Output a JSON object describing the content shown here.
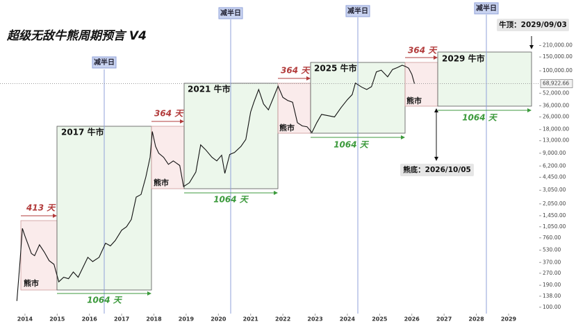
{
  "chart_data": {
    "type": "line",
    "title": "超级无敌牛熊周期预言 V4",
    "color": "#111111",
    "log_scale": true,
    "x": [
      2013.75,
      2013.85,
      2013.92,
      2014.0,
      2014.1,
      2014.2,
      2014.3,
      2014.45,
      2014.6,
      2014.75,
      2014.9,
      2015.05,
      2015.2,
      2015.35,
      2015.5,
      2015.65,
      2015.8,
      2015.95,
      2016.1,
      2016.3,
      2016.5,
      2016.65,
      2016.8,
      2017.0,
      2017.15,
      2017.3,
      2017.45,
      2017.6,
      2017.75,
      2017.88,
      2017.95,
      2018.05,
      2018.15,
      2018.3,
      2018.45,
      2018.6,
      2018.8,
      2018.92,
      2019.1,
      2019.3,
      2019.45,
      2019.6,
      2019.8,
      2019.95,
      2020.1,
      2020.2,
      2020.35,
      2020.5,
      2020.7,
      2020.85,
      2021.0,
      2021.1,
      2021.25,
      2021.4,
      2021.55,
      2021.7,
      2021.85,
      2022.0,
      2022.15,
      2022.3,
      2022.45,
      2022.6,
      2022.75,
      2022.9,
      2023.05,
      2023.2,
      2023.4,
      2023.6,
      2023.8,
      2024.0,
      2024.15,
      2024.25,
      2024.45,
      2024.6,
      2024.75,
      2024.9,
      2025.05,
      2025.25,
      2025.4,
      2025.55,
      2025.7,
      2025.8,
      2025.9,
      2026.0,
      2026.08
    ],
    "values": [
      120,
      400,
      1000,
      800,
      620,
      480,
      450,
      620,
      500,
      390,
      350,
      210,
      240,
      230,
      280,
      240,
      320,
      430,
      380,
      430,
      650,
      600,
      700,
      950,
      1050,
      1300,
      2500,
      2700,
      4500,
      8000,
      17000,
      11000,
      9000,
      8000,
      6500,
      7200,
      6300,
      3400,
      3800,
      5200,
      11500,
      10000,
      8000,
      7200,
      8500,
      5000,
      8700,
      9200,
      11000,
      13500,
      30000,
      40000,
      58000,
      38000,
      32000,
      45000,
      64000,
      46000,
      42000,
      40000,
      22000,
      20000,
      19500,
      16500,
      22000,
      28000,
      27000,
      26000,
      34000,
      43000,
      50000,
      70000,
      62000,
      58000,
      63000,
      97000,
      102000,
      84000,
      104000,
      110000,
      118000,
      114000,
      108000,
      90000,
      68922.66
    ],
    "xlim": [
      2013.7,
      2030.1
    ],
    "xticks": [
      2014,
      2015,
      2016,
      2017,
      2018,
      2019,
      2020,
      2021,
      2022,
      2023,
      2024,
      2025,
      2026,
      2027,
      2028,
      2029
    ],
    "ylim": [
      90,
      260000
    ],
    "yticks": [
      {
        "value": 100,
        "label": "100.00"
      },
      {
        "value": 138,
        "label": "138.00"
      },
      {
        "value": 190,
        "label": "190.00"
      },
      {
        "value": 270,
        "label": "270.00"
      },
      {
        "value": 370,
        "label": "370.00"
      },
      {
        "value": 530,
        "label": "530.00"
      },
      {
        "value": 760,
        "label": "760.00"
      },
      {
        "value": 1050,
        "label": "1,050.00"
      },
      {
        "value": 1450,
        "label": "1,450.00"
      },
      {
        "value": 2050,
        "label": "2,050.00"
      },
      {
        "value": 3050,
        "label": "3,050.00"
      },
      {
        "value": 4450,
        "label": "4,450.00"
      },
      {
        "value": 6200,
        "label": "6,200.00"
      },
      {
        "value": 9000,
        "label": "9,000.00"
      },
      {
        "value": 13000,
        "label": "13,000.00"
      },
      {
        "value": 18000,
        "label": "18,000.00"
      },
      {
        "value": 26000,
        "label": "26,000.00"
      },
      {
        "value": 36000,
        "label": "36,000.00"
      },
      {
        "value": 52000,
        "label": "52,000.00"
      },
      {
        "value": 100000,
        "label": "100,000.00"
      },
      {
        "value": 150000,
        "label": "150,000.00"
      },
      {
        "value": 210000,
        "label": "210,000.00"
      }
    ],
    "last_price": {
      "value": 68922.66,
      "label": "68,922.66"
    },
    "halving_labels": [
      "减半日",
      "减半日",
      "减半日",
      "减半日"
    ],
    "bear_durations": [
      "413 天",
      "364 天",
      "364 天",
      "364 天"
    ],
    "bull_durations": [
      "1064 天",
      "1064 天",
      "1064 天",
      "1064 天"
    ],
    "bull_labels": [
      "2017 牛市",
      "2021 牛市",
      "2025 牛市",
      "2029 牛市"
    ],
    "bear_labels": [
      "熊市",
      "熊市",
      "熊市",
      "熊市"
    ],
    "top_note": "牛顶：2029/09/03",
    "bottom_note": "熊底：2026/10/05"
  }
}
